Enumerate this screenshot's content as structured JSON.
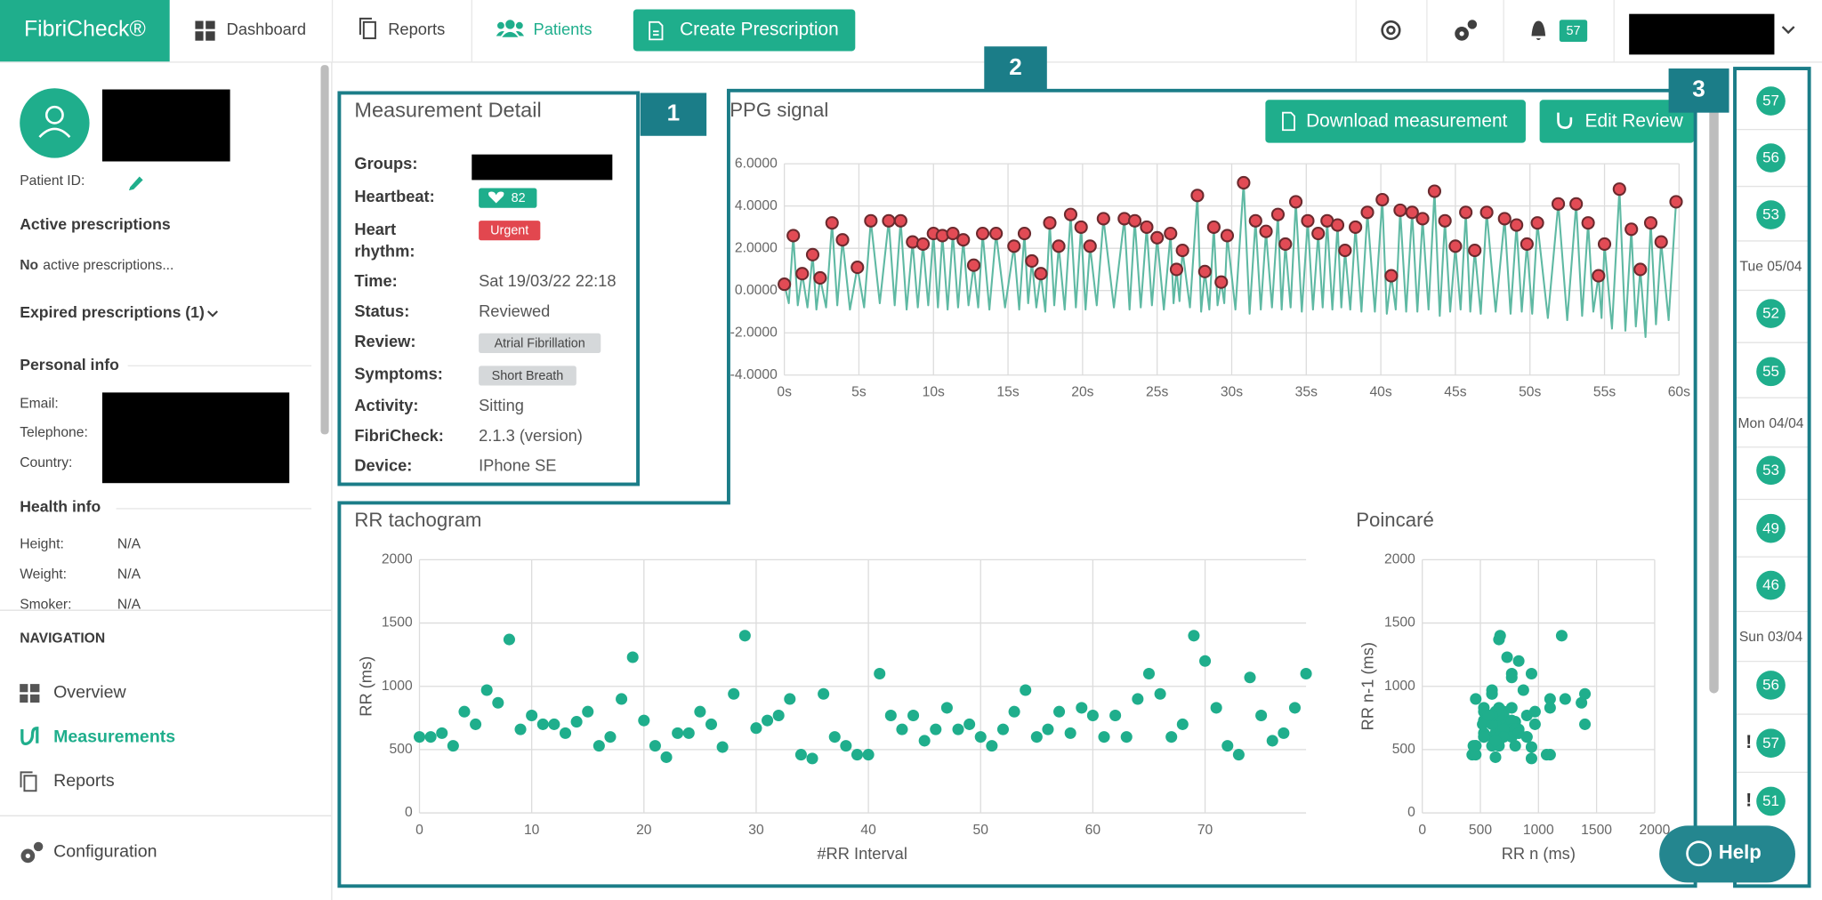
{
  "nav": {
    "logo": "FibriCheck®",
    "items": [
      "Dashboard",
      "Reports",
      "Patients"
    ],
    "button": "Create Prescription",
    "notifications": 57
  },
  "sidebar": {
    "patient_id_label": "Patient ID:",
    "active_title": "Active prescriptions",
    "no_active": [
      "No",
      "active prescriptions..."
    ],
    "expired": "Expired prescriptions (1)",
    "personal_title": "Personal info",
    "personal_labels": [
      "Email:",
      "Telephone:",
      "Country:"
    ],
    "health_title": "Health info",
    "health": [
      [
        "Height:",
        "N/A"
      ],
      [
        "Weight:",
        "N/A"
      ],
      [
        "Smoker:",
        "N/A"
      ]
    ],
    "navigation_title": "NAVIGATION",
    "nav_items": [
      "Overview",
      "Measurements",
      "Reports"
    ],
    "configuration": "Configuration"
  },
  "detail": {
    "title": "Measurement Detail",
    "rows": [
      {
        "label": "Groups:"
      },
      {
        "label": "Heartbeat:",
        "value": 82
      },
      {
        "label": "Heart rhythm:",
        "value": "Urgent"
      },
      {
        "label": "Time:",
        "value": "Sat 19/03/22 22:18"
      },
      {
        "label": "Status:",
        "value": "Reviewed"
      },
      {
        "label": "Review:",
        "value": "Atrial Fibrillation"
      },
      {
        "label": "Symptoms:",
        "value": "Short Breath"
      },
      {
        "label": "Activity:",
        "value": "Sitting"
      },
      {
        "label": "FibriCheck:",
        "value": "2.1.3 (version)"
      },
      {
        "label": "Device:",
        "value": "IPhone SE"
      }
    ]
  },
  "ppg_buttons": [
    "Download measurement",
    "Edit Review"
  ],
  "annotations": [
    "1",
    "2",
    "3"
  ],
  "timeline": [
    {
      "value": 57
    },
    {
      "value": 56
    },
    {
      "value": 53
    },
    {
      "date": "Tue 05/04"
    },
    {
      "value": 52
    },
    {
      "value": 55
    },
    {
      "date": "Mon 04/04"
    },
    {
      "value": 53
    },
    {
      "value": 49
    },
    {
      "value": 46
    },
    {
      "date": "Sun 03/04"
    },
    {
      "value": 56
    },
    {
      "value": 57,
      "flag": "!"
    },
    {
      "value": 51,
      "flag": "!"
    }
  ],
  "help": "Help",
  "chart_data": [
    {
      "type": "line",
      "title": "PPG signal",
      "xlim": [
        0,
        60
      ],
      "ylim": [
        -4,
        6
      ],
      "grid": true,
      "xticks": [
        {
          "value": 0,
          "label": "0s"
        },
        {
          "value": 5,
          "label": "5s"
        },
        {
          "value": 10,
          "label": "10s"
        },
        {
          "value": 15,
          "label": "15s"
        },
        {
          "value": 20,
          "label": "20s"
        },
        {
          "value": 25,
          "label": "25s"
        },
        {
          "value": 30,
          "label": "30s"
        },
        {
          "value": 35,
          "label": "35s"
        },
        {
          "value": 40,
          "label": "40s"
        },
        {
          "value": 45,
          "label": "45s"
        },
        {
          "value": 50,
          "label": "50s"
        },
        {
          "value": 55,
          "label": "55s"
        },
        {
          "value": 60,
          "label": "60s"
        }
      ],
      "yticks": [
        {
          "value": -4,
          "label": "-4.0000"
        },
        {
          "value": -2,
          "label": "-2.0000"
        },
        {
          "value": 0,
          "label": "0.0000"
        },
        {
          "value": 2,
          "label": "2.0000"
        },
        {
          "value": 4,
          "label": "4.0000"
        },
        {
          "value": 6,
          "label": "6.0000"
        }
      ],
      "series": [
        {
          "type": "line",
          "color": "#5fb9a3",
          "x": [
            0,
            0.3,
            0.6,
            0.9,
            1.2,
            1.55,
            1.9,
            2.15,
            2.4,
            2.8,
            3.2,
            3.55,
            3.9,
            4.4,
            4.9,
            5.35,
            5.8,
            6.4,
            7.0,
            7.4,
            7.8,
            8.2,
            8.6,
            8.95,
            9.3,
            9.65,
            10.0,
            10.3,
            10.6,
            10.95,
            11.3,
            11.65,
            12.0,
            12.35,
            12.7,
            13.0,
            13.3,
            13.75,
            14.2,
            14.8,
            15.4,
            15.75,
            16.1,
            16.35,
            16.6,
            16.9,
            17.2,
            17.5,
            17.8,
            18.1,
            18.4,
            18.8,
            19.2,
            19.55,
            19.9,
            20.2,
            20.5,
            20.95,
            21.4,
            22.1,
            22.8,
            23.15,
            23.5,
            23.9,
            24.3,
            24.65,
            25.0,
            25.45,
            25.9,
            26.1,
            26.3,
            26.5,
            26.7,
            27.2,
            27.7,
            27.95,
            28.2,
            28.5,
            28.8,
            29.05,
            29.3,
            29.5,
            29.7,
            30.25,
            30.8,
            31.2,
            31.6,
            31.95,
            32.3,
            32.7,
            33.1,
            33.35,
            33.6,
            33.95,
            34.3,
            34.7,
            35.1,
            35.45,
            35.8,
            36.1,
            36.4,
            36.75,
            37.1,
            37.35,
            37.6,
            37.95,
            38.3,
            38.7,
            39.1,
            39.6,
            40.1,
            40.4,
            40.7,
            41.0,
            41.3,
            41.7,
            42.1,
            42.45,
            42.8,
            43.2,
            43.6,
            43.95,
            44.3,
            44.65,
            45.0,
            45.35,
            45.7,
            46.0,
            46.3,
            46.7,
            47.1,
            47.7,
            48.3,
            48.7,
            49.1,
            49.45,
            49.8,
            50.15,
            50.5,
            51.2,
            51.9,
            52.5,
            53.1,
            53.5,
            53.9,
            54.25,
            54.6,
            54.8,
            55.0,
            55.5,
            56.0,
            56.4,
            56.8,
            57.1,
            57.4,
            57.75,
            58.1,
            58.45,
            58.8,
            59.3,
            59.8
          ],
          "values": [
            0.3,
            -0.6,
            2.6,
            -0.7,
            0.8,
            -0.8,
            1.7,
            -0.9,
            0.6,
            -0.8,
            3.2,
            -0.7,
            2.4,
            -0.9,
            1.1,
            -0.8,
            3.3,
            -0.6,
            3.3,
            -0.7,
            3.3,
            -0.9,
            2.3,
            -0.8,
            2.2,
            -0.7,
            2.7,
            -0.8,
            2.6,
            -0.9,
            2.7,
            -0.8,
            2.4,
            -0.7,
            1.2,
            -0.8,
            2.7,
            -0.9,
            2.7,
            -0.8,
            2.1,
            -0.9,
            2.7,
            -0.6,
            1.4,
            -0.8,
            0.8,
            -1.0,
            3.2,
            -0.7,
            2.1,
            -0.9,
            3.6,
            -0.8,
            3.0,
            -0.9,
            2.1,
            -0.7,
            3.4,
            -0.8,
            3.4,
            -0.9,
            3.3,
            -0.8,
            3.0,
            -0.7,
            2.5,
            -0.9,
            2.7,
            -0.6,
            1.0,
            -0.5,
            1.9,
            -0.8,
            4.5,
            -1.0,
            0.9,
            -0.9,
            3.0,
            -0.7,
            0.4,
            -0.6,
            2.6,
            -0.9,
            5.1,
            -1.1,
            3.3,
            -0.9,
            2.8,
            -0.8,
            3.6,
            -0.9,
            2.2,
            -0.8,
            4.2,
            -1.0,
            3.3,
            -0.9,
            2.7,
            -0.8,
            3.3,
            -0.9,
            3.1,
            -0.8,
            1.9,
            -0.9,
            3.0,
            -1.0,
            3.7,
            -1.0,
            4.3,
            -1.1,
            0.7,
            -0.9,
            3.8,
            -1.0,
            3.7,
            -1.0,
            3.4,
            -0.9,
            4.7,
            -1.2,
            3.3,
            -1.0,
            2.1,
            -0.9,
            3.7,
            -1.0,
            1.9,
            -1.1,
            3.7,
            -1.0,
            3.4,
            -1.1,
            3.1,
            -1.0,
            2.2,
            -1.1,
            3.2,
            -1.3,
            4.1,
            -1.4,
            4.1,
            -1.2,
            3.2,
            -1.0,
            0.7,
            -1.3,
            2.2,
            -1.8,
            4.8,
            -1.9,
            2.9,
            -1.7,
            1.0,
            -2.2,
            3.2,
            -1.6,
            2.3,
            -1.4,
            4.2
          ]
        },
        {
          "type": "scatter",
          "color": "#e24b55",
          "x": [
            0,
            0.6,
            1.2,
            1.9,
            2.4,
            3.2,
            3.9,
            4.9,
            5.8,
            7.0,
            7.8,
            8.6,
            9.3,
            10.0,
            10.6,
            11.3,
            12.0,
            12.7,
            13.3,
            14.2,
            15.4,
            16.1,
            16.6,
            17.2,
            17.8,
            18.4,
            19.2,
            19.9,
            20.5,
            21.4,
            22.8,
            23.5,
            24.3,
            25.0,
            25.9,
            26.3,
            26.7,
            27.7,
            28.2,
            28.8,
            29.3,
            29.7,
            30.8,
            31.6,
            32.3,
            33.1,
            33.6,
            34.3,
            35.1,
            35.8,
            36.4,
            37.1,
            37.6,
            38.3,
            39.1,
            40.1,
            40.7,
            41.3,
            42.1,
            42.8,
            43.6,
            44.3,
            45.0,
            45.7,
            46.3,
            47.1,
            48.3,
            49.1,
            49.8,
            50.5,
            51.9,
            53.1,
            53.9,
            54.6,
            55.0,
            56.0,
            56.8,
            57.4,
            58.1,
            58.8,
            59.8
          ],
          "values": [
            0.3,
            2.6,
            0.8,
            1.7,
            0.6,
            3.2,
            2.4,
            1.1,
            3.3,
            3.3,
            3.3,
            2.3,
            2.2,
            2.7,
            2.6,
            2.7,
            2.4,
            1.2,
            2.7,
            2.7,
            2.1,
            2.7,
            1.4,
            0.8,
            3.2,
            2.1,
            3.6,
            3.0,
            2.1,
            3.4,
            3.4,
            3.3,
            3.0,
            2.5,
            2.7,
            1.0,
            1.9,
            4.5,
            0.9,
            3.0,
            0.4,
            2.6,
            5.1,
            3.3,
            2.8,
            3.6,
            2.2,
            4.2,
            3.3,
            2.7,
            3.3,
            3.1,
            1.9,
            3.0,
            3.7,
            4.3,
            0.7,
            3.8,
            3.7,
            3.4,
            4.7,
            3.3,
            2.1,
            3.7,
            1.9,
            3.7,
            3.4,
            3.1,
            2.2,
            3.2,
            4.1,
            4.1,
            3.2,
            0.7,
            2.2,
            4.8,
            2.9,
            1.0,
            3.2,
            2.3,
            4.2
          ]
        }
      ]
    },
    {
      "type": "scatter",
      "title": "RR tachogram",
      "xlabel": "#RR Interval",
      "ylabel": "RR (ms)",
      "xlim": [
        0,
        79
      ],
      "ylim": [
        0,
        2000
      ],
      "xticks": [
        0,
        10,
        20,
        30,
        40,
        50,
        60,
        70
      ],
      "yticks": [
        0,
        500,
        1000,
        1500,
        2000
      ],
      "grid": true,
      "color": "#1fae8c",
      "x": [
        0,
        1,
        2,
        3,
        4,
        5,
        6,
        7,
        8,
        9,
        10,
        11,
        12,
        13,
        14,
        15,
        16,
        17,
        18,
        19,
        20,
        21,
        22,
        23,
        24,
        25,
        26,
        27,
        28,
        29,
        30,
        31,
        32,
        33,
        34,
        35,
        36,
        37,
        38,
        39,
        40,
        41,
        42,
        43,
        44,
        45,
        46,
        47,
        48,
        49,
        50,
        51,
        52,
        53,
        54,
        55,
        56,
        57,
        58,
        59,
        60,
        61,
        62,
        63,
        64,
        65,
        66,
        67,
        68,
        69,
        70,
        71,
        72,
        73,
        74,
        75,
        76,
        77,
        78,
        79
      ],
      "values": [
        600,
        600,
        630,
        530,
        800,
        700,
        970,
        870,
        1370,
        660,
        770,
        700,
        700,
        630,
        720,
        800,
        530,
        600,
        900,
        1230,
        730,
        530,
        440,
        630,
        630,
        800,
        700,
        520,
        940,
        1400,
        670,
        730,
        770,
        900,
        460,
        430,
        940,
        600,
        530,
        460,
        460,
        1100,
        770,
        660,
        770,
        570,
        660,
        830,
        660,
        700,
        600,
        530,
        660,
        800,
        970,
        600,
        660,
        800,
        630,
        830,
        770,
        600,
        770,
        600,
        900,
        1100,
        940,
        600,
        700,
        1400,
        1200,
        830,
        530,
        460,
        1070,
        770,
        570,
        630,
        830,
        1100
      ]
    },
    {
      "type": "scatter",
      "title": "Poincaré",
      "xlabel": "RR n (ms)",
      "ylabel": "RR n-1 (ms)",
      "xlim": [
        0,
        2000
      ],
      "ylim": [
        0,
        2000
      ],
      "xticks": [
        0,
        500,
        1000,
        1500,
        2000
      ],
      "yticks": [
        0,
        500,
        1000,
        1500,
        2000
      ],
      "grid": true,
      "color": "#1fae8c",
      "x": [
        600,
        630,
        530,
        800,
        700,
        970,
        870,
        1370,
        660,
        770,
        700,
        700,
        630,
        720,
        800,
        530,
        600,
        900,
        1230,
        730,
        530,
        440,
        630,
        630,
        800,
        700,
        520,
        940,
        1400,
        670,
        730,
        770,
        900,
        460,
        430,
        940,
        600,
        530,
        460,
        460,
        1100,
        770,
        660,
        770,
        570,
        660,
        830,
        660,
        700,
        600,
        530,
        660,
        800,
        970,
        600,
        660,
        800,
        630,
        830,
        770,
        600,
        770,
        600,
        900,
        1100,
        940,
        600,
        700,
        1400,
        1200,
        830,
        530,
        460,
        1070,
        770,
        570,
        630,
        830,
        1100
      ],
      "values": [
        600,
        600,
        630,
        530,
        800,
        700,
        970,
        870,
        1370,
        660,
        770,
        700,
        700,
        630,
        720,
        800,
        530,
        600,
        900,
        1230,
        730,
        530,
        440,
        630,
        630,
        800,
        700,
        520,
        940,
        1400,
        670,
        730,
        770,
        900,
        460,
        430,
        940,
        600,
        530,
        460,
        460,
        1100,
        770,
        660,
        770,
        570,
        660,
        830,
        660,
        700,
        600,
        530,
        660,
        800,
        970,
        600,
        660,
        800,
        630,
        830,
        770,
        600,
        770,
        600,
        900,
        1100,
        940,
        600,
        700,
        1400,
        1200,
        830,
        530,
        460,
        1070,
        770,
        570,
        630,
        830
      ]
    }
  ]
}
